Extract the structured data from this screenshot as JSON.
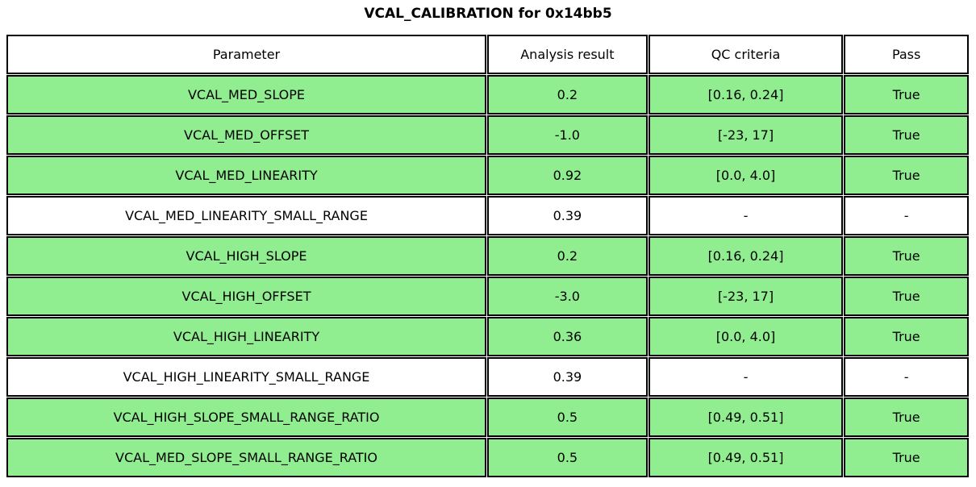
{
  "colors": {
    "row_pass_bg": "#90EE90",
    "row_no_criteria_bg": "#ffffff",
    "border": "#000000",
    "text": "#000000",
    "background": "#ffffff"
  },
  "chart_data": {
    "type": "table",
    "title": "VCAL_CALIBRATION for 0x14bb5",
    "columns": [
      "Parameter",
      "Analysis result",
      "QC criteria",
      "Pass"
    ],
    "rows": [
      [
        "VCAL_MED_SLOPE",
        "0.2",
        "[0.16, 0.24]",
        "True"
      ],
      [
        "VCAL_MED_OFFSET",
        "-1.0",
        "[-23, 17]",
        "True"
      ],
      [
        "VCAL_MED_LINEARITY",
        "0.92",
        "[0.0, 4.0]",
        "True"
      ],
      [
        "VCAL_MED_LINEARITY_SMALL_RANGE",
        "0.39",
        "-",
        "-"
      ],
      [
        "VCAL_HIGH_SLOPE",
        "0.2",
        "[0.16, 0.24]",
        "True"
      ],
      [
        "VCAL_HIGH_OFFSET",
        "-3.0",
        "[-23, 17]",
        "True"
      ],
      [
        "VCAL_HIGH_LINEARITY",
        "0.36",
        "[0.0, 4.0]",
        "True"
      ],
      [
        "VCAL_HIGH_LINEARITY_SMALL_RANGE",
        "0.39",
        "-",
        "-"
      ],
      [
        "VCAL_HIGH_SLOPE_SMALL_RANGE_RATIO",
        "0.5",
        "[0.49, 0.51]",
        "True"
      ],
      [
        "VCAL_MED_SLOPE_SMALL_RANGE_RATIO",
        "0.5",
        "[0.49, 0.51]",
        "True"
      ]
    ],
    "row_green": [
      true,
      true,
      true,
      false,
      true,
      true,
      true,
      false,
      true,
      true
    ],
    "legend_position": "none",
    "grid": false
  }
}
